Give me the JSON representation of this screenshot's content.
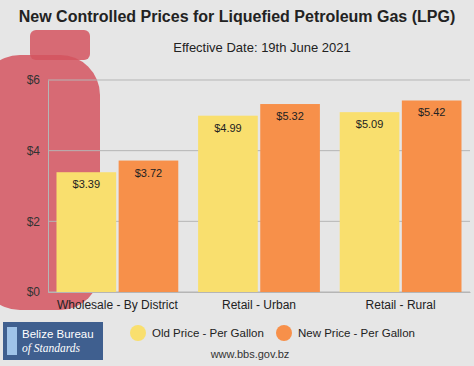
{
  "chart_data": {
    "type": "bar",
    "title": "New Controlled Prices for Liquefied Petroleum Gas (LPG)",
    "subtitle": "Effective Date: 19th June 2021",
    "categories": [
      "Wholesale - By District",
      "Retail - Urban",
      "Retail - Rural"
    ],
    "series": [
      {
        "name": "Old Price - Per Gallon",
        "color": "#f9df6e",
        "values": [
          3.39,
          4.99,
          5.09
        ],
        "value_labels": [
          "$3.39",
          "$4.99",
          "$5.09"
        ]
      },
      {
        "name": "New Price - Per Gallon",
        "color": "#f7904a",
        "values": [
          3.72,
          5.32,
          5.42
        ],
        "value_labels": [
          "$3.72",
          "$5.32",
          "$5.42"
        ]
      }
    ],
    "ylim": [
      0,
      6
    ],
    "yticks": [
      {
        "value": 0,
        "label": "$0"
      },
      {
        "value": 2,
        "label": "$2"
      },
      {
        "value": 4,
        "label": "$4"
      },
      {
        "value": 6,
        "label": "$6"
      }
    ],
    "grid": true,
    "data_labels": true,
    "legend": "bottom",
    "annotations": [
      "Belize Bureau",
      "of Standards"
    ],
    "source": "www.bbs.gov.bz"
  }
}
